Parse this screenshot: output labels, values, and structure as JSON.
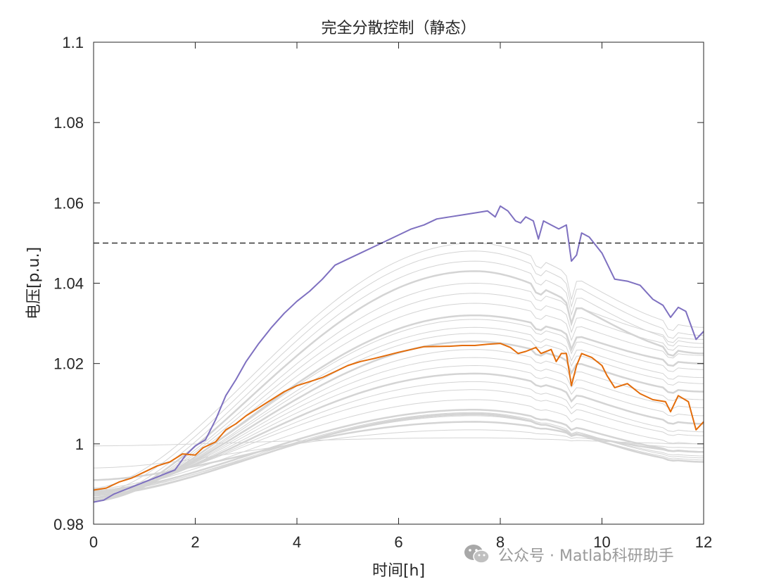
{
  "watermark": {
    "text": "公众号 · Matlab科研助手",
    "icon": "wechat-icon"
  },
  "chart_data": {
    "type": "line",
    "title": "完全分散控制（静态）",
    "xlabel": "时间[h]",
    "ylabel": "电压[p.u.]",
    "xlim": [
      0,
      12
    ],
    "ylim": [
      0.98,
      1.1
    ],
    "xticks": [
      0,
      2,
      4,
      6,
      8,
      10,
      12
    ],
    "xtick_labels": [
      "0",
      "2",
      "4",
      "6",
      "8",
      "10",
      "12"
    ],
    "yticks": [
      0.98,
      1.0,
      1.02,
      1.04,
      1.06,
      1.08,
      1.1
    ],
    "ytick_labels": [
      "0.98",
      "1",
      "1.02",
      "1.04",
      "1.06",
      "1.08",
      "1.1"
    ],
    "grid": false,
    "box": true,
    "reference_line": {
      "y": 1.05,
      "style": "dashed",
      "color": "#000000"
    },
    "series": [
      {
        "color": "#7e70c0",
        "width": 2,
        "points": [
          [
            0,
            0.9855
          ],
          [
            0.2,
            0.986
          ],
          [
            0.4,
            0.9875
          ],
          [
            0.6,
            0.9885
          ],
          [
            0.8,
            0.9895
          ],
          [
            1.0,
            0.9905
          ],
          [
            1.2,
            0.9915
          ],
          [
            1.4,
            0.9925
          ],
          [
            1.6,
            0.9935
          ],
          [
            1.8,
            0.997
          ],
          [
            2.0,
            0.9995
          ],
          [
            2.2,
            1.001
          ],
          [
            2.4,
            1.006
          ],
          [
            2.6,
            1.012
          ],
          [
            2.8,
            1.016
          ],
          [
            3.0,
            1.0205
          ],
          [
            3.25,
            1.025
          ],
          [
            3.5,
            1.029
          ],
          [
            3.75,
            1.0325
          ],
          [
            4.0,
            1.0355
          ],
          [
            4.25,
            1.038
          ],
          [
            4.5,
            1.041
          ],
          [
            4.75,
            1.0445
          ],
          [
            5.0,
            1.046
          ],
          [
            5.25,
            1.0475
          ],
          [
            5.5,
            1.049
          ],
          [
            5.75,
            1.0505
          ],
          [
            6.0,
            1.052
          ],
          [
            6.25,
            1.0535
          ],
          [
            6.5,
            1.0545
          ],
          [
            6.75,
            1.056
          ],
          [
            7.0,
            1.0565
          ],
          [
            7.25,
            1.057
          ],
          [
            7.5,
            1.0575
          ],
          [
            7.75,
            1.058
          ],
          [
            7.9,
            1.0565
          ],
          [
            8.0,
            1.0592
          ],
          [
            8.15,
            1.058
          ],
          [
            8.3,
            1.0555
          ],
          [
            8.4,
            1.055
          ],
          [
            8.5,
            1.0565
          ],
          [
            8.65,
            1.0555
          ],
          [
            8.75,
            1.051
          ],
          [
            8.85,
            1.0555
          ],
          [
            9.0,
            1.0545
          ],
          [
            9.15,
            1.0535
          ],
          [
            9.3,
            1.0545
          ],
          [
            9.4,
            1.0455
          ],
          [
            9.5,
            1.047
          ],
          [
            9.6,
            1.0525
          ],
          [
            9.75,
            1.0515
          ],
          [
            10.0,
            1.0475
          ],
          [
            10.25,
            1.041
          ],
          [
            10.5,
            1.0405
          ],
          [
            10.75,
            1.0395
          ],
          [
            11.0,
            1.036
          ],
          [
            11.2,
            1.0345
          ],
          [
            11.35,
            1.0315
          ],
          [
            11.5,
            1.034
          ],
          [
            11.65,
            1.033
          ],
          [
            11.85,
            1.026
          ],
          [
            12.0,
            1.028
          ]
        ]
      },
      {
        "color": "#e36c0a",
        "width": 2,
        "points": [
          [
            0,
            0.9885
          ],
          [
            0.25,
            0.989
          ],
          [
            0.5,
            0.9905
          ],
          [
            0.75,
            0.9915
          ],
          [
            1.0,
            0.993
          ],
          [
            1.25,
            0.9945
          ],
          [
            1.5,
            0.9955
          ],
          [
            1.75,
            0.9975
          ],
          [
            2.0,
            0.9972
          ],
          [
            2.15,
            0.999
          ],
          [
            2.4,
            1.0005
          ],
          [
            2.6,
            1.0035
          ],
          [
            2.8,
            1.005
          ],
          [
            3.0,
            1.007
          ],
          [
            3.25,
            1.009
          ],
          [
            3.5,
            1.011
          ],
          [
            3.75,
            1.013
          ],
          [
            4.0,
            1.0145
          ],
          [
            4.25,
            1.0155
          ],
          [
            4.5,
            1.0165
          ],
          [
            4.75,
            1.018
          ],
          [
            5.0,
            1.0195
          ],
          [
            5.25,
            1.0205
          ],
          [
            5.5,
            1.0212
          ],
          [
            5.75,
            1.022
          ],
          [
            6.0,
            1.0228
          ],
          [
            6.25,
            1.0235
          ],
          [
            6.5,
            1.0242
          ],
          [
            7.0,
            1.0243
          ],
          [
            7.25,
            1.0245
          ],
          [
            7.5,
            1.0245
          ],
          [
            7.75,
            1.0248
          ],
          [
            8.0,
            1.025
          ],
          [
            8.2,
            1.024
          ],
          [
            8.35,
            1.0225
          ],
          [
            8.5,
            1.023
          ],
          [
            8.7,
            1.024
          ],
          [
            8.8,
            1.0225
          ],
          [
            9.0,
            1.0235
          ],
          [
            9.1,
            1.0205
          ],
          [
            9.2,
            1.0225
          ],
          [
            9.3,
            1.0225
          ],
          [
            9.4,
            1.0145
          ],
          [
            9.5,
            1.0195
          ],
          [
            9.6,
            1.0225
          ],
          [
            9.8,
            1.0215
          ],
          [
            10.0,
            1.0195
          ],
          [
            10.1,
            1.017
          ],
          [
            10.25,
            1.014
          ],
          [
            10.5,
            1.015
          ],
          [
            10.75,
            1.0125
          ],
          [
            11.0,
            1.011
          ],
          [
            11.25,
            1.0105
          ],
          [
            11.35,
            1.008
          ],
          [
            11.5,
            1.012
          ],
          [
            11.7,
            1.0105
          ],
          [
            11.85,
            1.0035
          ],
          [
            12.0,
            1.0055
          ]
        ]
      }
    ],
    "background_band_series": {
      "color": "#d4d4d4",
      "count": 27,
      "note_free": true,
      "start_values": [
        0.9872,
        0.9875,
        0.9878,
        0.988,
        0.9882,
        0.9885,
        0.9888,
        0.9882,
        0.9878,
        0.9875,
        0.9872,
        0.9868,
        0.9866,
        0.9864,
        0.9862,
        0.986,
        0.9858,
        0.9857,
        0.9856,
        0.9856,
        0.9858,
        0.9865,
        0.9875,
        0.989,
        0.991,
        0.994,
        0.9995
      ],
      "peak_values": [
        1.0075,
        1.0072,
        1.0078,
        1.007,
        1.0085,
        1.011,
        1.0135,
        1.0155,
        1.0175,
        1.0195,
        1.0215,
        1.0235,
        1.0255,
        1.0275,
        1.029,
        1.031,
        1.032,
        1.035,
        1.0375,
        1.04,
        1.043,
        1.0455,
        1.048,
        1.05,
        1.0055,
        1.0035,
        1.0015
      ],
      "end_values": [
        0.9955,
        0.996,
        0.9965,
        0.997,
        0.998,
        1.0,
        1.002,
        1.003,
        1.005,
        1.007,
        1.009,
        1.011,
        1.013,
        1.015,
        1.0165,
        1.0185,
        1.02,
        1.022,
        1.024,
        1.026,
        1.0225,
        1.025,
        1.027,
        1.029,
        0.998,
        0.999,
        1.0
      ]
    }
  }
}
